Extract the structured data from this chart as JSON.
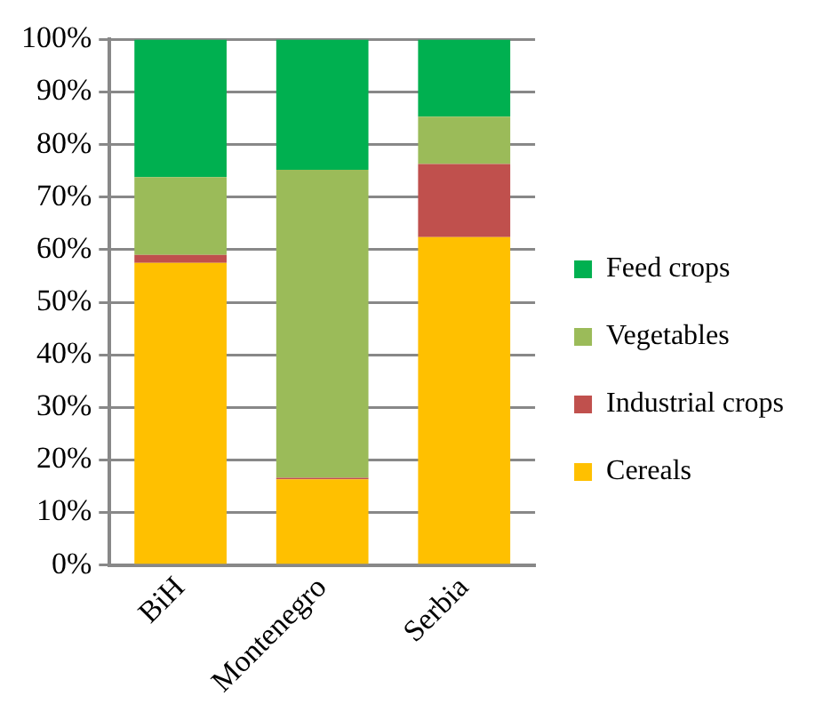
{
  "chart_data": {
    "type": "bar",
    "stacked": true,
    "categories": [
      "BiH",
      "Montenegro",
      "Serbia"
    ],
    "series": [
      {
        "name": "Cereals",
        "color": "#ffc000",
        "values": [
          57.5,
          16.3,
          62.4
        ]
      },
      {
        "name": "Industrial crops",
        "color": "#c0504d",
        "values": [
          1.5,
          0.3,
          13.9
        ]
      },
      {
        "name": "Vegetables",
        "color": "#9bbb59",
        "values": [
          14.8,
          58.6,
          9
        ]
      },
      {
        "name": "Feed crops",
        "color": "#00b050",
        "values": [
          26.2,
          24.8,
          14.7
        ]
      }
    ],
    "ylim": [
      0,
      100
    ],
    "yticks": [
      {
        "value": 0,
        "label": "0%"
      },
      {
        "value": 10,
        "label": "10%"
      },
      {
        "value": 20,
        "label": "20%"
      },
      {
        "value": 30,
        "label": "30%"
      },
      {
        "value": 40,
        "label": "40%"
      },
      {
        "value": 50,
        "label": "50%"
      },
      {
        "value": 60,
        "label": "60%"
      },
      {
        "value": 70,
        "label": "70%"
      },
      {
        "value": 80,
        "label": "80%"
      },
      {
        "value": 90,
        "label": "90%"
      },
      {
        "value": 100,
        "label": "100%"
      }
    ],
    "grid": "y",
    "legend": "right"
  }
}
